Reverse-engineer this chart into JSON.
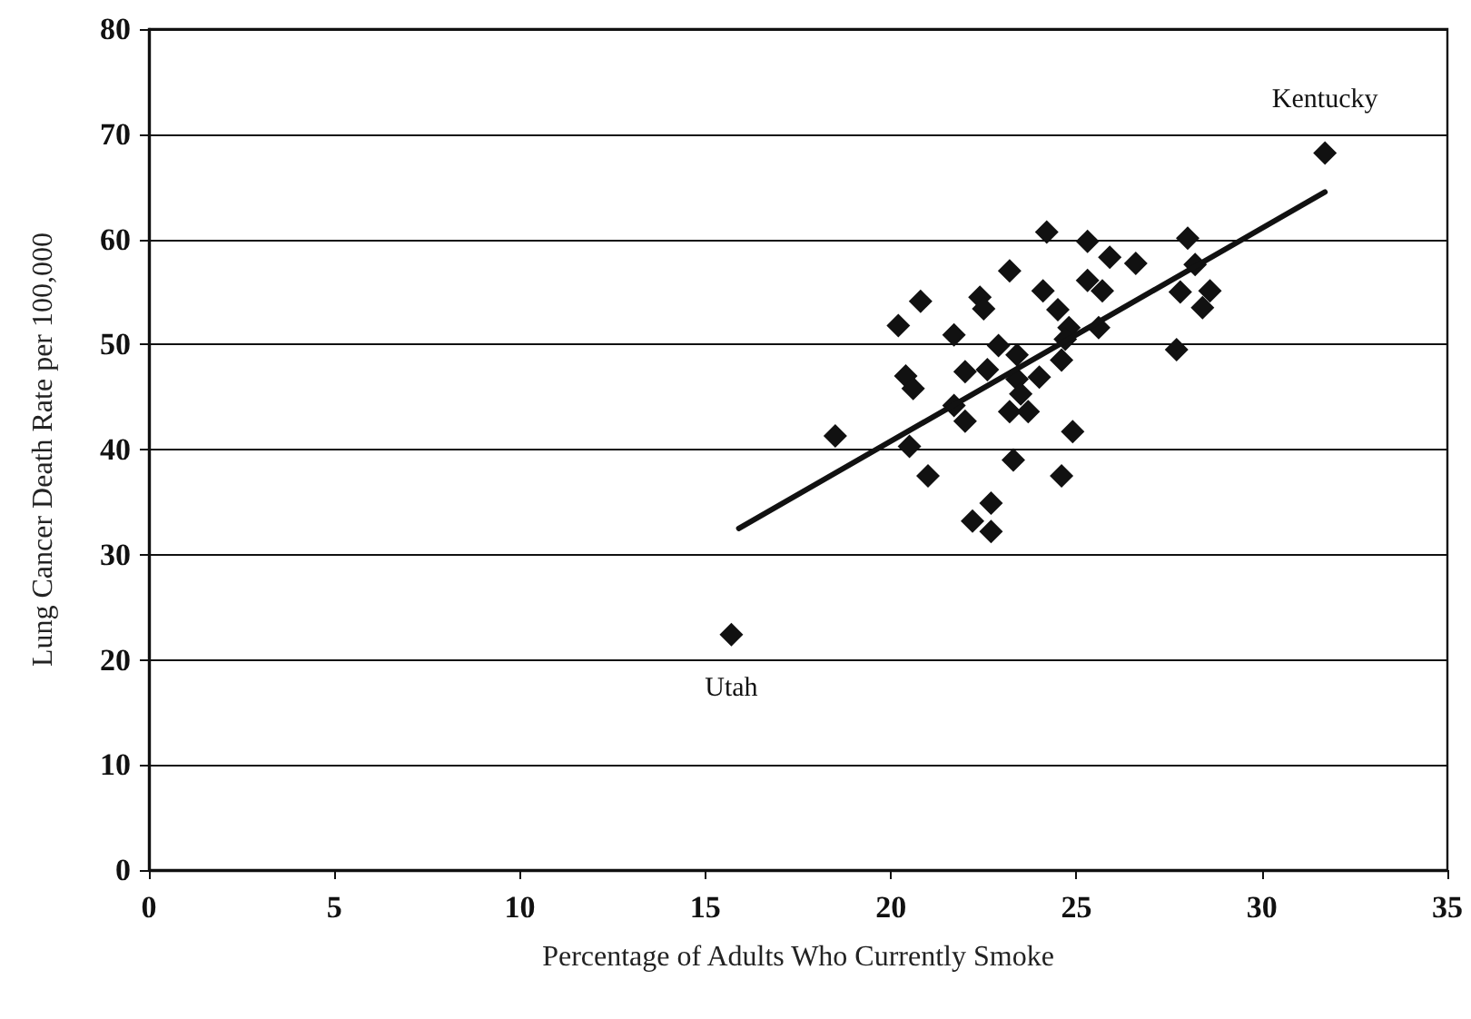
{
  "chart_data": {
    "type": "scatter",
    "xlabel": "Percentage of Adults Who Currently Smoke",
    "ylabel": "Lung Cancer Death Rate per 100,000",
    "xlim": [
      0,
      35
    ],
    "xticks": [
      0,
      5,
      10,
      15,
      20,
      25,
      30,
      35
    ],
    "ylim": [
      0,
      80
    ],
    "yticks": [
      0,
      10,
      20,
      30,
      40,
      50,
      60,
      70,
      80
    ],
    "grid": "y",
    "marker": "diamond",
    "series": [
      {
        "color": "#111111",
        "x": [
          15.7,
          31.7,
          18.5,
          24.2,
          25.3,
          28.0,
          25.9,
          26.6,
          23.2,
          28.2,
          25.3,
          25.7,
          24.1,
          27.8,
          28.6,
          28.4,
          20.8,
          22.4,
          22.5,
          20.2,
          21.7,
          24.5,
          24.8,
          25.6,
          24.7,
          22.9,
          23.4,
          27.7,
          24.6,
          22.6,
          22.0,
          20.4,
          20.6,
          23.4,
          24.0,
          23.5,
          21.7,
          22.0,
          23.2,
          23.7,
          24.9,
          20.5,
          21.0,
          23.3,
          24.6,
          22.7,
          22.2,
          22.7
        ],
        "values": [
          22.4,
          68.2,
          41.3,
          60.7,
          59.8,
          60.1,
          58.3,
          57.7,
          57.0,
          57.6,
          56.1,
          55.1,
          55.1,
          55.0,
          55.1,
          53.5,
          54.1,
          54.5,
          53.4,
          51.8,
          50.9,
          53.3,
          51.6,
          51.6,
          50.5,
          49.9,
          49.0,
          49.5,
          48.5,
          47.6,
          47.4,
          47.0,
          45.8,
          46.7,
          46.9,
          45.3,
          44.2,
          42.7,
          43.6,
          43.6,
          41.7,
          40.3,
          37.5,
          39.0,
          37.5,
          34.9,
          33.2,
          32.2
        ]
      },
      {
        "type": "line",
        "color": "#111111",
        "marker": "none",
        "x": [
          15.9,
          31.7
        ],
        "values": [
          32.5,
          64.5
        ]
      }
    ],
    "annotations": [
      {
        "text": "Kentucky",
        "x": 31.7,
        "y": 68.2
      },
      {
        "text": "Utah",
        "x": 15.7,
        "y": 22.4
      }
    ]
  }
}
